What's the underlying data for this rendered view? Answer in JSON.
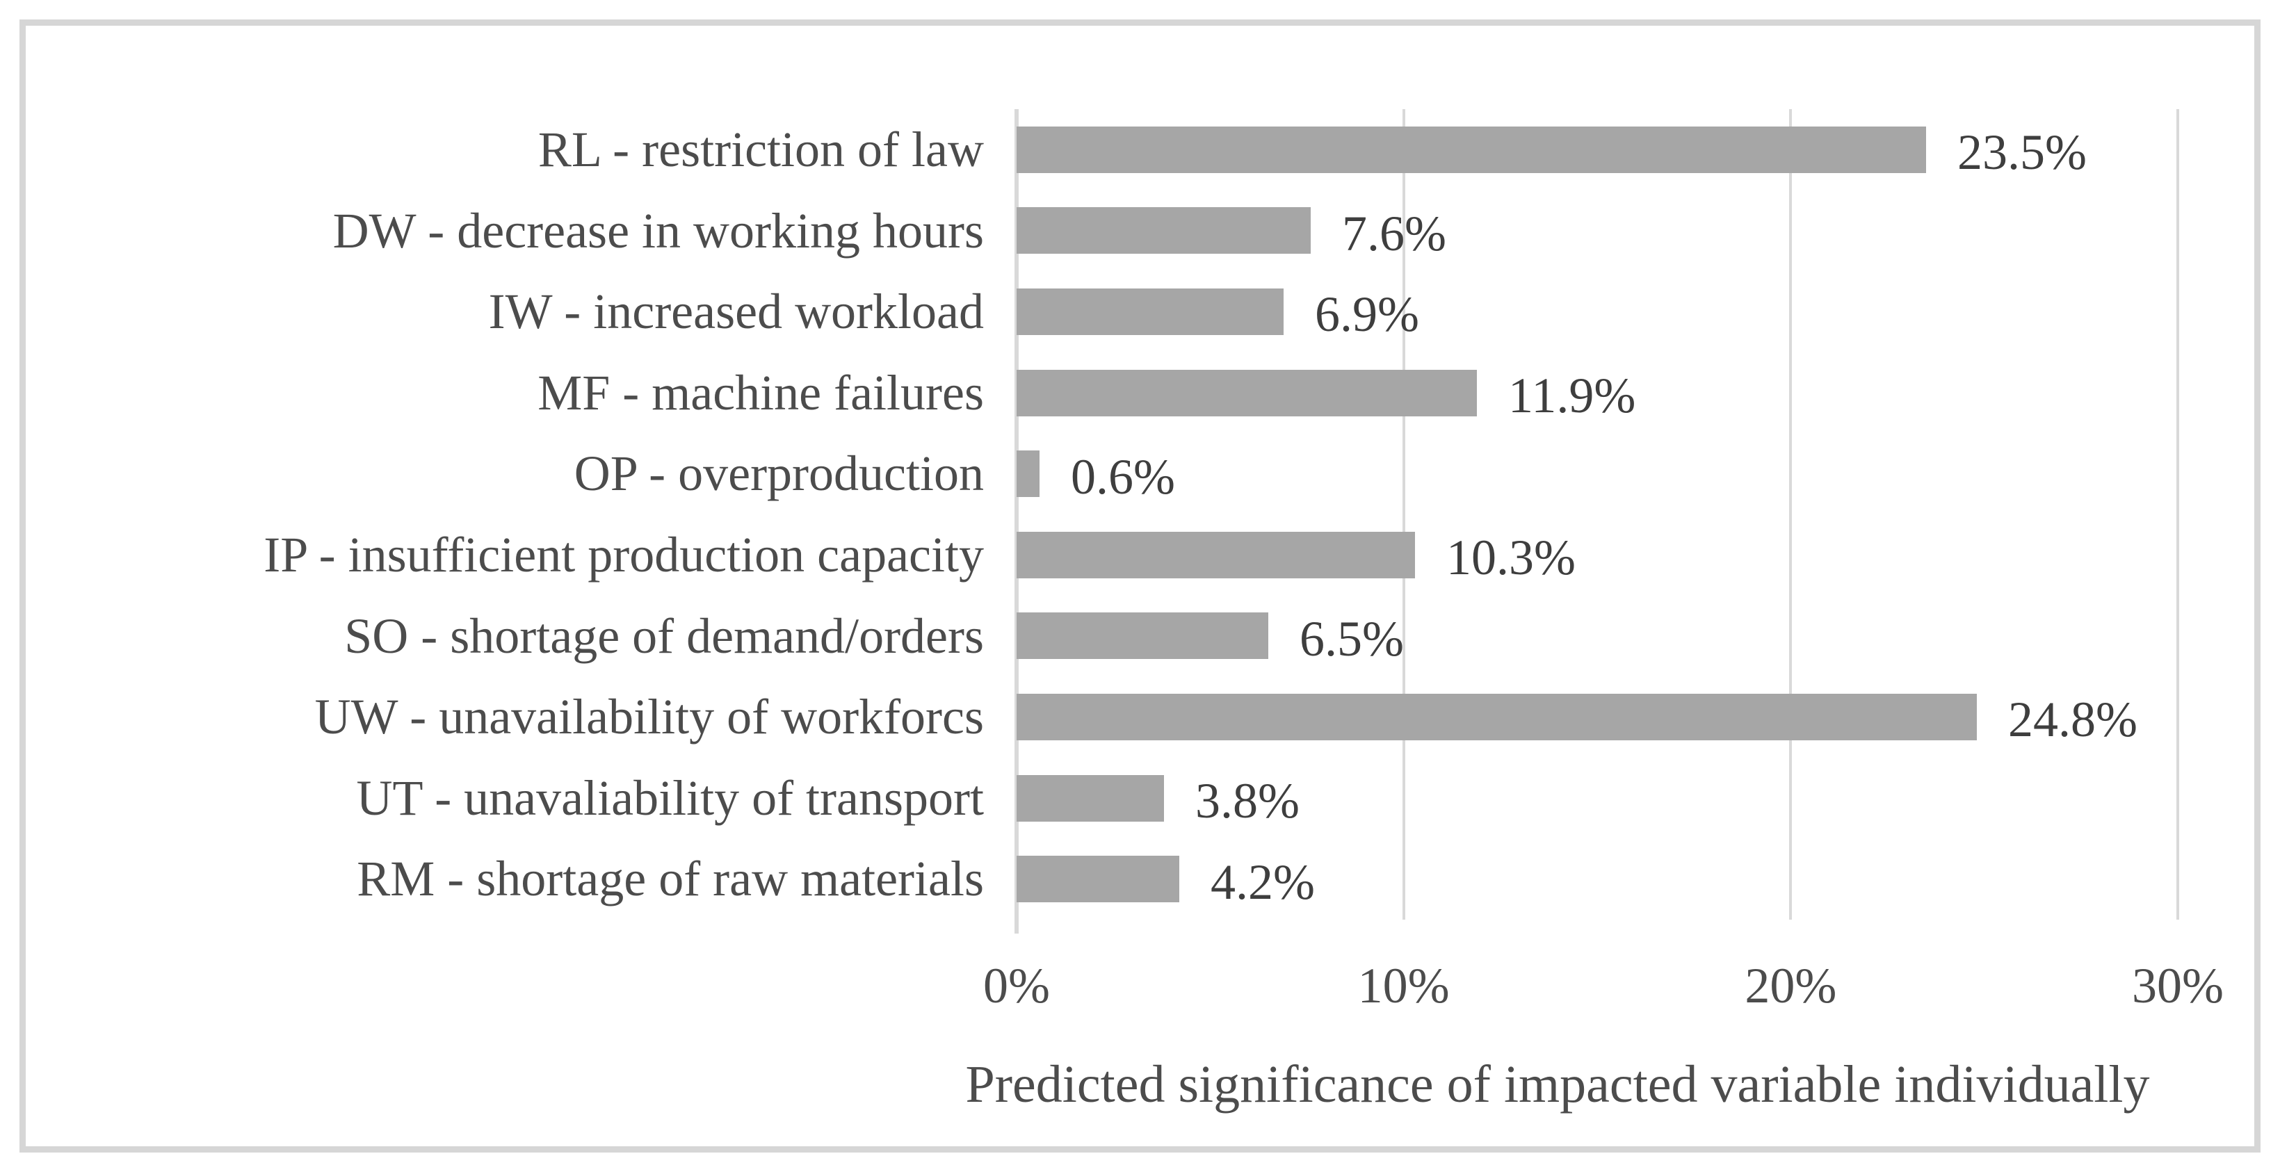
{
  "chart_data": {
    "type": "bar",
    "orientation": "horizontal",
    "categories": [
      "RL - restriction of law",
      "DW - decrease in working hours",
      "IW - increased workload",
      "MF - machine failures",
      "OP - overproduction",
      "IP - insufficient production capacity",
      "SO - shortage of demand/orders",
      "UW - unavailability of workforcs",
      "UT - unavaliability of transport",
      "RM - shortage of raw materials"
    ],
    "values": [
      23.5,
      7.6,
      6.9,
      11.9,
      0.6,
      10.3,
      6.5,
      24.8,
      3.8,
      4.2
    ],
    "data_labels": [
      "23.5%",
      "7.6%",
      "6.9%",
      "11.9%",
      "0.6%",
      "10.3%",
      "6.5%",
      "24.8%",
      "3.8%",
      "4.2%"
    ],
    "xlabel": "Predicted significance of impacted variable individually",
    "x_ticks": [
      "0%",
      "10%",
      "20%",
      "30%"
    ],
    "xlim": [
      0,
      30
    ],
    "grid": "vertical-gridlines-on",
    "legend": "none",
    "bar_color": "#a6a6a6",
    "gridline_color": "#d9d9d9",
    "frame_color": "#d6d6d6",
    "category_text_color": "#4c4c4c",
    "data_label_color": "#3e3e3e"
  }
}
